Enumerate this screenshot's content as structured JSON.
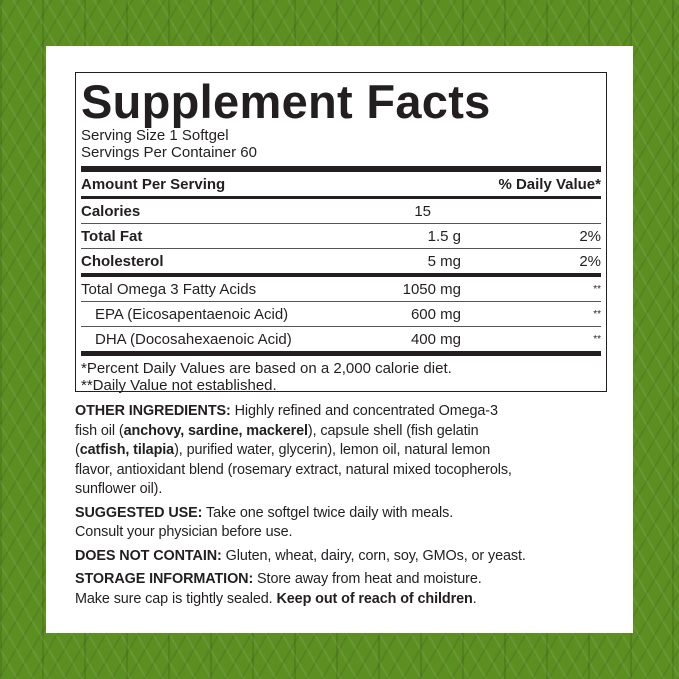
{
  "title": "Supplement Facts",
  "serving_size": "Serving Size 1 Softgel",
  "servings_per_container": "Servings Per Container 60",
  "header": {
    "amount": "Amount Per Serving",
    "dv": "% Daily Value*"
  },
  "rows": [
    {
      "name": "Calories",
      "amount": "15",
      "dv": ""
    },
    {
      "name": "Total Fat",
      "amount": "1.5 g",
      "dv": "2%"
    },
    {
      "name": "Cholesterol",
      "amount": "5 mg",
      "dv": "2%"
    },
    {
      "name": "Total Omega 3 Fatty Acids",
      "amount": "1050 mg",
      "dv": "**"
    },
    {
      "name": "EPA (Eicosapentaenoic Acid)",
      "amount": "600 mg",
      "dv": "**"
    },
    {
      "name": "DHA (Docosahexaenoic Acid)",
      "amount": "400 mg",
      "dv": "**"
    }
  ],
  "footnotes": [
    "*Percent Daily Values are based on a 2,000 calorie diet.",
    "**Daily Value not established."
  ],
  "other_ingredients": {
    "label": "OTHER INGREDIENTS:",
    "l1": " Highly refined and concentrated Omega-3",
    "l2a": "fish oil (",
    "l2b": "anchovy, sardine, mackerel",
    "l2c": "), capsule shell (fish gelatin",
    "l3a": "(",
    "l3b": "catfish, tilapia",
    "l3c": "), purified water, glycerin), lemon oil, natural lemon",
    "l4": "flavor, antioxidant blend (rosemary extract, natural mixed tocopherols,",
    "l5": "sunflower oil)."
  },
  "suggested_use": {
    "label": "SUGGESTED USE:",
    "l1": " Take one softgel twice daily with meals.",
    "l2": "Consult your physician before use."
  },
  "does_not_contain": {
    "label": "DOES NOT CONTAIN:",
    "text": " Gluten, wheat, dairy, corn, soy, GMOs, or yeast."
  },
  "storage": {
    "label": "STORAGE INFORMATION:",
    "l1": " Store away from heat and moisture.",
    "l2a": "Make sure cap is tightly sealed. ",
    "l2b": "Keep out of reach of children",
    "l2c": "."
  },
  "colors": {
    "background_green": "#5b8f22",
    "text": "#231f20"
  }
}
